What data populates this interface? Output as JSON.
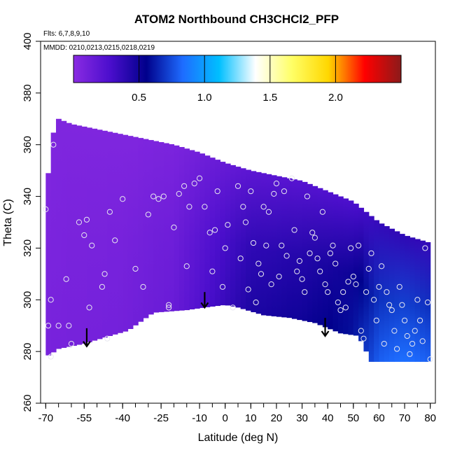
{
  "chart_data": {
    "type": "heatmap",
    "title": "ATOM2 Northbound CH3CHCl2_PFP",
    "flights_note": "Flts: 6,7,8,9,10",
    "dates_note": "MMDD: 0210,0213,0215,0218,0219",
    "xlabel": "Latitude (deg N)",
    "ylabel": "Theta (C)",
    "xlim": [
      -72,
      82
    ],
    "ylim": [
      260,
      400
    ],
    "xticks": [
      -70,
      -55,
      -40,
      -25,
      -10,
      0,
      10,
      20,
      30,
      40,
      50,
      60,
      70,
      80
    ],
    "xtick_labels": [
      "-70",
      "-55",
      "-40",
      "-25",
      "-10",
      "0",
      "10",
      "20",
      "30",
      "40",
      "50",
      "60",
      "70",
      "80"
    ],
    "xtick_minor_step": 5,
    "yticks": [
      260,
      280,
      300,
      320,
      340,
      360,
      380,
      400
    ],
    "ytick_labels": [
      "260",
      "280",
      "300",
      "320",
      "340",
      "360",
      "380",
      "400"
    ],
    "colorbar": {
      "range": [
        0,
        2.5
      ],
      "ticks": [
        0.5,
        1.0,
        1.5,
        2.0
      ],
      "tick_labels": [
        "0.5",
        "1.0",
        "1.5",
        "2.0"
      ],
      "colors": [
        "#8a2be2",
        "#4b0ecd",
        "#00008b",
        "#1e6cff",
        "#00bfff",
        "#ffffff",
        "#ffff66",
        "#ffd700",
        "#ff0000",
        "#8b1a1a"
      ]
    },
    "field": {
      "lower_boundary": [
        [
          -70,
          278
        ],
        [
          -68,
          279
        ],
        [
          -65,
          281
        ],
        [
          -55,
          283
        ],
        [
          -45,
          286
        ],
        [
          -38,
          288
        ],
        [
          -28,
          295
        ],
        [
          -15,
          296
        ],
        [
          -8,
          297
        ],
        [
          0,
          298
        ],
        [
          5,
          297
        ],
        [
          15,
          294
        ],
        [
          25,
          293
        ],
        [
          35,
          291
        ],
        [
          45,
          287
        ],
        [
          52,
          286
        ],
        [
          57,
          276
        ],
        [
          80,
          276
        ]
      ],
      "upper_boundary": [
        [
          -70,
          336
        ],
        [
          -68,
          362
        ],
        [
          -65,
          370
        ],
        [
          -60,
          368
        ],
        [
          -50,
          366
        ],
        [
          -40,
          364
        ],
        [
          -30,
          362
        ],
        [
          -20,
          360
        ],
        [
          -10,
          357
        ],
        [
          0,
          353
        ],
        [
          10,
          350
        ],
        [
          20,
          348
        ],
        [
          30,
          346
        ],
        [
          40,
          342
        ],
        [
          50,
          338
        ],
        [
          60,
          330
        ],
        [
          70,
          325
        ],
        [
          80,
          322
        ]
      ],
      "value_stops": [
        {
          "lat": -70,
          "value": 0.08
        },
        {
          "lat": -40,
          "value": 0.1
        },
        {
          "lat": -20,
          "value": 0.15
        },
        {
          "lat": -5,
          "value": 0.3
        },
        {
          "lat": 10,
          "value": 0.45
        },
        {
          "lat": 30,
          "value": 0.5
        },
        {
          "lat": 50,
          "value": 0.6
        },
        {
          "lat": 60,
          "value": 0.8
        },
        {
          "lat": 70,
          "value": 0.85
        },
        {
          "lat": 80,
          "value": 0.8
        }
      ]
    },
    "arrows": [
      {
        "lat": -54,
        "theta_top": 289,
        "theta_tip": 282
      },
      {
        "lat": -8,
        "theta_top": 303,
        "theta_tip": 297
      },
      {
        "lat": 39,
        "theta_top": 293,
        "theta_tip": 286
      }
    ],
    "samples": [
      [
        -70,
        335
      ],
      [
        -69,
        290
      ],
      [
        -68,
        300
      ],
      [
        -67,
        360
      ],
      [
        -68,
        278
      ],
      [
        -65,
        290
      ],
      [
        -62,
        308
      ],
      [
        -61,
        290
      ],
      [
        -60,
        283
      ],
      [
        -57,
        330
      ],
      [
        -54,
        331
      ],
      [
        -55,
        325
      ],
      [
        -53,
        297
      ],
      [
        -52,
        321
      ],
      [
        -48,
        305
      ],
      [
        -47,
        310
      ],
      [
        -45,
        334
      ],
      [
        -43,
        323
      ],
      [
        -46,
        285
      ],
      [
        -40,
        339
      ],
      [
        -35,
        312
      ],
      [
        -32,
        305
      ],
      [
        -30,
        333
      ],
      [
        -28,
        340
      ],
      [
        -26,
        339
      ],
      [
        -24,
        340
      ],
      [
        -22,
        298
      ],
      [
        -22,
        297
      ],
      [
        -20,
        328
      ],
      [
        -18,
        341
      ],
      [
        -16,
        344
      ],
      [
        -15,
        313
      ],
      [
        -14,
        336
      ],
      [
        -12,
        345
      ],
      [
        -10,
        347
      ],
      [
        -8,
        336
      ],
      [
        -6,
        326
      ],
      [
        -4,
        327
      ],
      [
        -5,
        311
      ],
      [
        -3,
        342
      ],
      [
        -1,
        305
      ],
      [
        0,
        320
      ],
      [
        1,
        329
      ],
      [
        3,
        297
      ],
      [
        5,
        344
      ],
      [
        6,
        316
      ],
      [
        7,
        336
      ],
      [
        8,
        330
      ],
      [
        9,
        304
      ],
      [
        10,
        342
      ],
      [
        11,
        322
      ],
      [
        12,
        299
      ],
      [
        13,
        314
      ],
      [
        14,
        310
      ],
      [
        15,
        336
      ],
      [
        16,
        321
      ],
      [
        17,
        334
      ],
      [
        18,
        306
      ],
      [
        19,
        341
      ],
      [
        20,
        345
      ],
      [
        21,
        309
      ],
      [
        22,
        321
      ],
      [
        23,
        342
      ],
      [
        24,
        317
      ],
      [
        26,
        347
      ],
      [
        27,
        327
      ],
      [
        28,
        311
      ],
      [
        29,
        315
      ],
      [
        30,
        308
      ],
      [
        31,
        303
      ],
      [
        32,
        340
      ],
      [
        33,
        318
      ],
      [
        34,
        326
      ],
      [
        35,
        324
      ],
      [
        36,
        316
      ],
      [
        37,
        311
      ],
      [
        38,
        334
      ],
      [
        39,
        306
      ],
      [
        40,
        303
      ],
      [
        41,
        318
      ],
      [
        42,
        321
      ],
      [
        43,
        314
      ],
      [
        44,
        299
      ],
      [
        45,
        296
      ],
      [
        46,
        303
      ],
      [
        47,
        297
      ],
      [
        48,
        307
      ],
      [
        49,
        320
      ],
      [
        50,
        309
      ],
      [
        51,
        306
      ],
      [
        52,
        321
      ],
      [
        53,
        288
      ],
      [
        54,
        285
      ],
      [
        55,
        303
      ],
      [
        56,
        312
      ],
      [
        57,
        318
      ],
      [
        58,
        300
      ],
      [
        59,
        292
      ],
      [
        60,
        305
      ],
      [
        61,
        313
      ],
      [
        62,
        283
      ],
      [
        63,
        303
      ],
      [
        64,
        298
      ],
      [
        65,
        296
      ],
      [
        66,
        288
      ],
      [
        67,
        281
      ],
      [
        68,
        305
      ],
      [
        69,
        298
      ],
      [
        70,
        292
      ],
      [
        71,
        286
      ],
      [
        72,
        279
      ],
      [
        73,
        283
      ],
      [
        74,
        288
      ],
      [
        75,
        300
      ],
      [
        76,
        292
      ],
      [
        77,
        284
      ],
      [
        78,
        320
      ],
      [
        79,
        299
      ],
      [
        80,
        277
      ]
    ]
  }
}
